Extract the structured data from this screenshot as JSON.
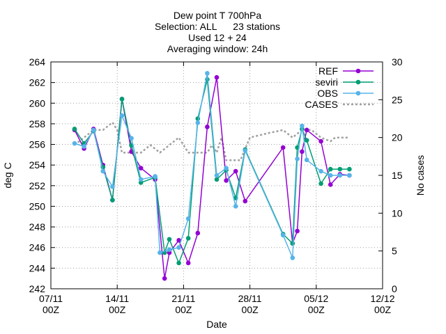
{
  "chart_data": {
    "type": "line",
    "title_lines": [
      "Dew point T 700hPa",
      "Selection: ALL      23 stations",
      "Used 12 + 24",
      "Averaging window: 24h"
    ],
    "xlabel": "Date",
    "ylabel": "deg C",
    "y2label": "No cases",
    "x_ticks": [
      {
        "day": 0,
        "l1": "07/11",
        "l2": "00Z"
      },
      {
        "day": 7,
        "l1": "14/11",
        "l2": "00Z"
      },
      {
        "day": 14,
        "l1": "21/11",
        "l2": "00Z"
      },
      {
        "day": 21,
        "l1": "28/11",
        "l2": "00Z"
      },
      {
        "day": 28,
        "l1": "05/12",
        "l2": "00Z"
      },
      {
        "day": 35,
        "l1": "12/12",
        "l2": "00Z"
      }
    ],
    "xlim": [
      0,
      35
    ],
    "ylim": [
      242,
      264
    ],
    "y_ticks": [
      242,
      244,
      246,
      248,
      250,
      252,
      254,
      256,
      258,
      260,
      262,
      264
    ],
    "y2lim": [
      0,
      30
    ],
    "y2_ticks": [
      0,
      5,
      10,
      15,
      20,
      25,
      30
    ],
    "grid": true,
    "legend_position": "top-right",
    "series": [
      {
        "name": "REF",
        "color": "#9400d3",
        "marker": "circle",
        "axis": "y",
        "x": [
          2.5,
          3.5,
          4.5,
          5.5,
          6.5,
          7.5,
          8.5,
          9.5,
          11.0,
          12.0,
          12.5,
          13.5,
          14.5,
          15.5,
          16.5,
          17.5,
          18.5,
          19.5,
          20.5,
          24.5,
          25.5,
          26.0,
          26.5,
          27.0,
          28.5,
          29.5,
          30.5,
          31.5
        ],
        "y": [
          257.4,
          255.6,
          257.5,
          254.0,
          250.6,
          260.4,
          255.3,
          253.7,
          252.6,
          243.0,
          245.5,
          246.7,
          244.5,
          247.4,
          257.7,
          262.5,
          252.5,
          253.4,
          250.5,
          255.7,
          246.4,
          247.6,
          255.3,
          257.4,
          256.3,
          252.1,
          253.1,
          253.0
        ]
      },
      {
        "name": "seviri",
        "color": "#009e73",
        "marker": "circle",
        "axis": "y",
        "x": [
          2.5,
          3.5,
          4.5,
          5.5,
          6.5,
          7.5,
          8.5,
          9.5,
          11.0,
          12.0,
          12.5,
          13.5,
          14.5,
          15.5,
          16.5,
          17.5,
          18.5,
          19.5,
          20.5,
          24.5,
          25.5,
          26.0,
          26.5,
          27.0,
          28.5,
          29.5,
          30.5,
          31.5
        ],
        "y": [
          257.5,
          256.1,
          257.3,
          253.8,
          250.6,
          260.4,
          255.9,
          252.3,
          252.8,
          245.5,
          246.8,
          244.5,
          246.9,
          258.5,
          262.3,
          252.6,
          253.5,
          250.8,
          255.5,
          247.3,
          246.4,
          255.7,
          257.5,
          256.4,
          252.2,
          253.6,
          253.6,
          253.6
        ]
      },
      {
        "name": "OBS",
        "color": "#56b4e9",
        "marker": "circle",
        "axis": "y",
        "x": [
          2.5,
          3.5,
          4.5,
          5.5,
          6.5,
          7.5,
          8.5,
          9.5,
          11.0,
          11.5,
          12.5,
          13.5,
          14.5,
          15.5,
          16.5,
          17.5,
          18.5,
          19.5,
          20.5,
          24.5,
          25.5,
          26.0,
          26.5,
          27.0,
          28.5,
          29.5,
          30.5,
          31.5
        ],
        "y": [
          256.1,
          255.8,
          257.4,
          253.4,
          251.9,
          258.8,
          256.6,
          252.6,
          252.9,
          245.5,
          245.8,
          246.0,
          248.8,
          258.1,
          262.9,
          253.0,
          253.7,
          250.0,
          255.4,
          247.2,
          245.0,
          254.6,
          257.8,
          254.5,
          253.4,
          253.0,
          253.0,
          253.0
        ]
      },
      {
        "name": "CASES",
        "color": "#a0a0a0",
        "marker": "none",
        "dashed": true,
        "axis": "y2",
        "x": [
          2.5,
          3.5,
          4.5,
          5.5,
          6.5,
          7.0,
          7.5,
          8.5,
          9.5,
          10.5,
          11.5,
          12.5,
          13.5,
          14.0,
          14.5,
          15.5,
          16.5,
          17.0,
          17.5,
          18.0,
          18.5,
          19.5,
          20.0,
          21.0,
          22.0,
          23.0,
          24.5,
          25.5,
          26.0,
          26.5,
          27.0,
          27.5,
          28.5,
          29.5,
          30.0,
          30.5,
          31.5
        ],
        "y": [
          19,
          20,
          21,
          21,
          22,
          21,
          18,
          18,
          18,
          19,
          18,
          19,
          20,
          19,
          18,
          18,
          18,
          19,
          18,
          20,
          17,
          17,
          17,
          20,
          20.3,
          20.6,
          21,
          20,
          20.5,
          21,
          21,
          21,
          20,
          19.5,
          20,
          20,
          20
        ]
      }
    ]
  }
}
